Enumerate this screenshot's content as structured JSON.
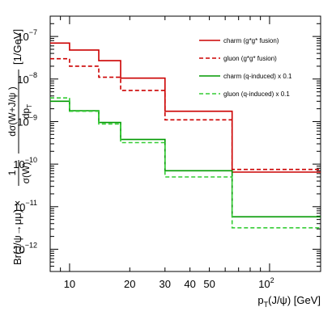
{
  "chart_data": {
    "type": "line",
    "step": true,
    "xscale": "log",
    "yscale": "log",
    "xlim": [
      8,
      180
    ],
    "ylim": [
      3e-13,
      3e-07
    ],
    "xlabel": "p_T(J/ψ) [GeV]",
    "ylabel": "Br(J/ψ→μμ) × 1/σ(W) · dσ(W+J/ψ)/dp_T [1/GeV]",
    "ylabel_parts": {
      "prefix": "Br(J/ψ→μμ) ×",
      "frac1_num": "1",
      "frac1_den": "σ(W)",
      "frac2_num": "dσ(W+J/ψ )",
      "frac2_den": "dp",
      "frac2_den_sub": "T",
      "unit": "[1/GeV]"
    },
    "xlabel_parts": {
      "base": "p",
      "sub": "T",
      "rest": "(J/ψ) [GeV]"
    },
    "x_tick_labels": [
      {
        "value": 10,
        "label": "10"
      },
      {
        "value": 20,
        "label": "20"
      },
      {
        "value": 30,
        "label": "30"
      },
      {
        "value": 40,
        "label": "40"
      },
      {
        "value": 50,
        "label": "50"
      }
    ],
    "x_tick_special": {
      "value": 100,
      "base": "10",
      "exp": "2"
    },
    "y_tick_labels": [
      {
        "value": 1e-07,
        "base": "10",
        "exp": "−7"
      },
      {
        "value": 1e-08,
        "base": "10",
        "exp": "−8"
      },
      {
        "value": 1e-09,
        "base": "10",
        "exp": "−9"
      },
      {
        "value": 1e-10,
        "base": "10",
        "exp": "−10"
      },
      {
        "value": 1e-11,
        "base": "10",
        "exp": "−11"
      },
      {
        "value": 1e-12,
        "base": "10",
        "exp": "−12"
      }
    ],
    "bin_edges": [
      8,
      10,
      14,
      18,
      30,
      65,
      180
    ],
    "series": [
      {
        "name": "charm (g*g* fusion)",
        "color": "#cc0000",
        "dash": false,
        "values": [
          7e-08,
          4.8e-08,
          2.7e-08,
          1.05e-08,
          1.75e-09,
          6.5e-11
        ]
      },
      {
        "name": "gluon (g*g* fusion)",
        "color": "#cc0000",
        "dash": true,
        "values": [
          3e-08,
          2e-08,
          1.1e-08,
          5.4e-09,
          1.1e-09,
          7.5e-11
        ]
      },
      {
        "name": "charm (q-induced) x 0.1",
        "color": "#009900",
        "dash": false,
        "values": [
          3e-09,
          1.8e-09,
          9.5e-10,
          3.8e-10,
          7e-11,
          5.8e-12
        ]
      },
      {
        "name": "gluon (q-induced) x 0.1",
        "color": "#33cc33",
        "dash": true,
        "values": [
          3.6e-09,
          1.75e-09,
          8.8e-10,
          3.2e-10,
          5e-11,
          3.2e-12
        ]
      }
    ],
    "legend_position": "top-right",
    "grid": false
  }
}
